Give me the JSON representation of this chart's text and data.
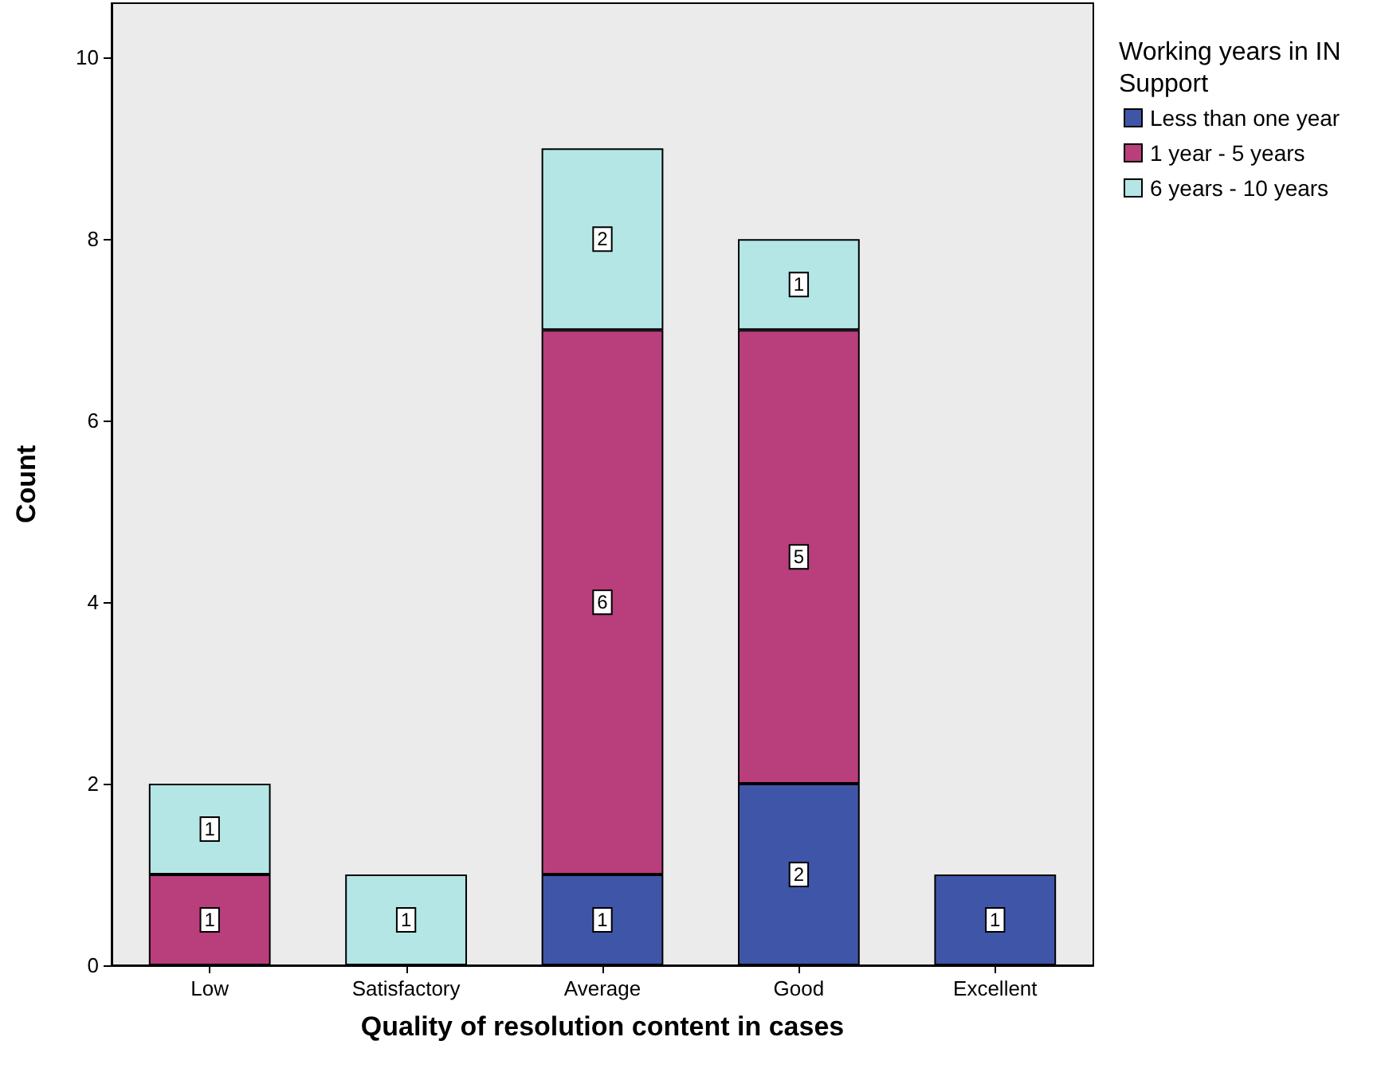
{
  "chart_data": {
    "type": "bar",
    "stacked": true,
    "xlabel": "Quality of resolution content in cases",
    "ylabel": "Count",
    "legend_title": "Working years in IN Support",
    "legend": "top right",
    "grid": false,
    "data_labels": true,
    "categories": [
      "Low",
      "Satisfactory",
      "Average",
      "Good",
      "Excellent"
    ],
    "ylim": [
      0,
      10.6
    ],
    "yticks": [
      0,
      2,
      4,
      6,
      8,
      10
    ],
    "series": [
      {
        "name": "Less than one year",
        "color": "#3f56a8",
        "values": [
          null,
          null,
          1,
          2,
          1
        ]
      },
      {
        "name": "1 year - 5 years",
        "color": "#b93e7c",
        "values": [
          1,
          null,
          6,
          5,
          null
        ]
      },
      {
        "name": "6 years - 10 years",
        "color": "#b4e6e6",
        "values": [
          1,
          1,
          2,
          1,
          null
        ]
      }
    ]
  }
}
